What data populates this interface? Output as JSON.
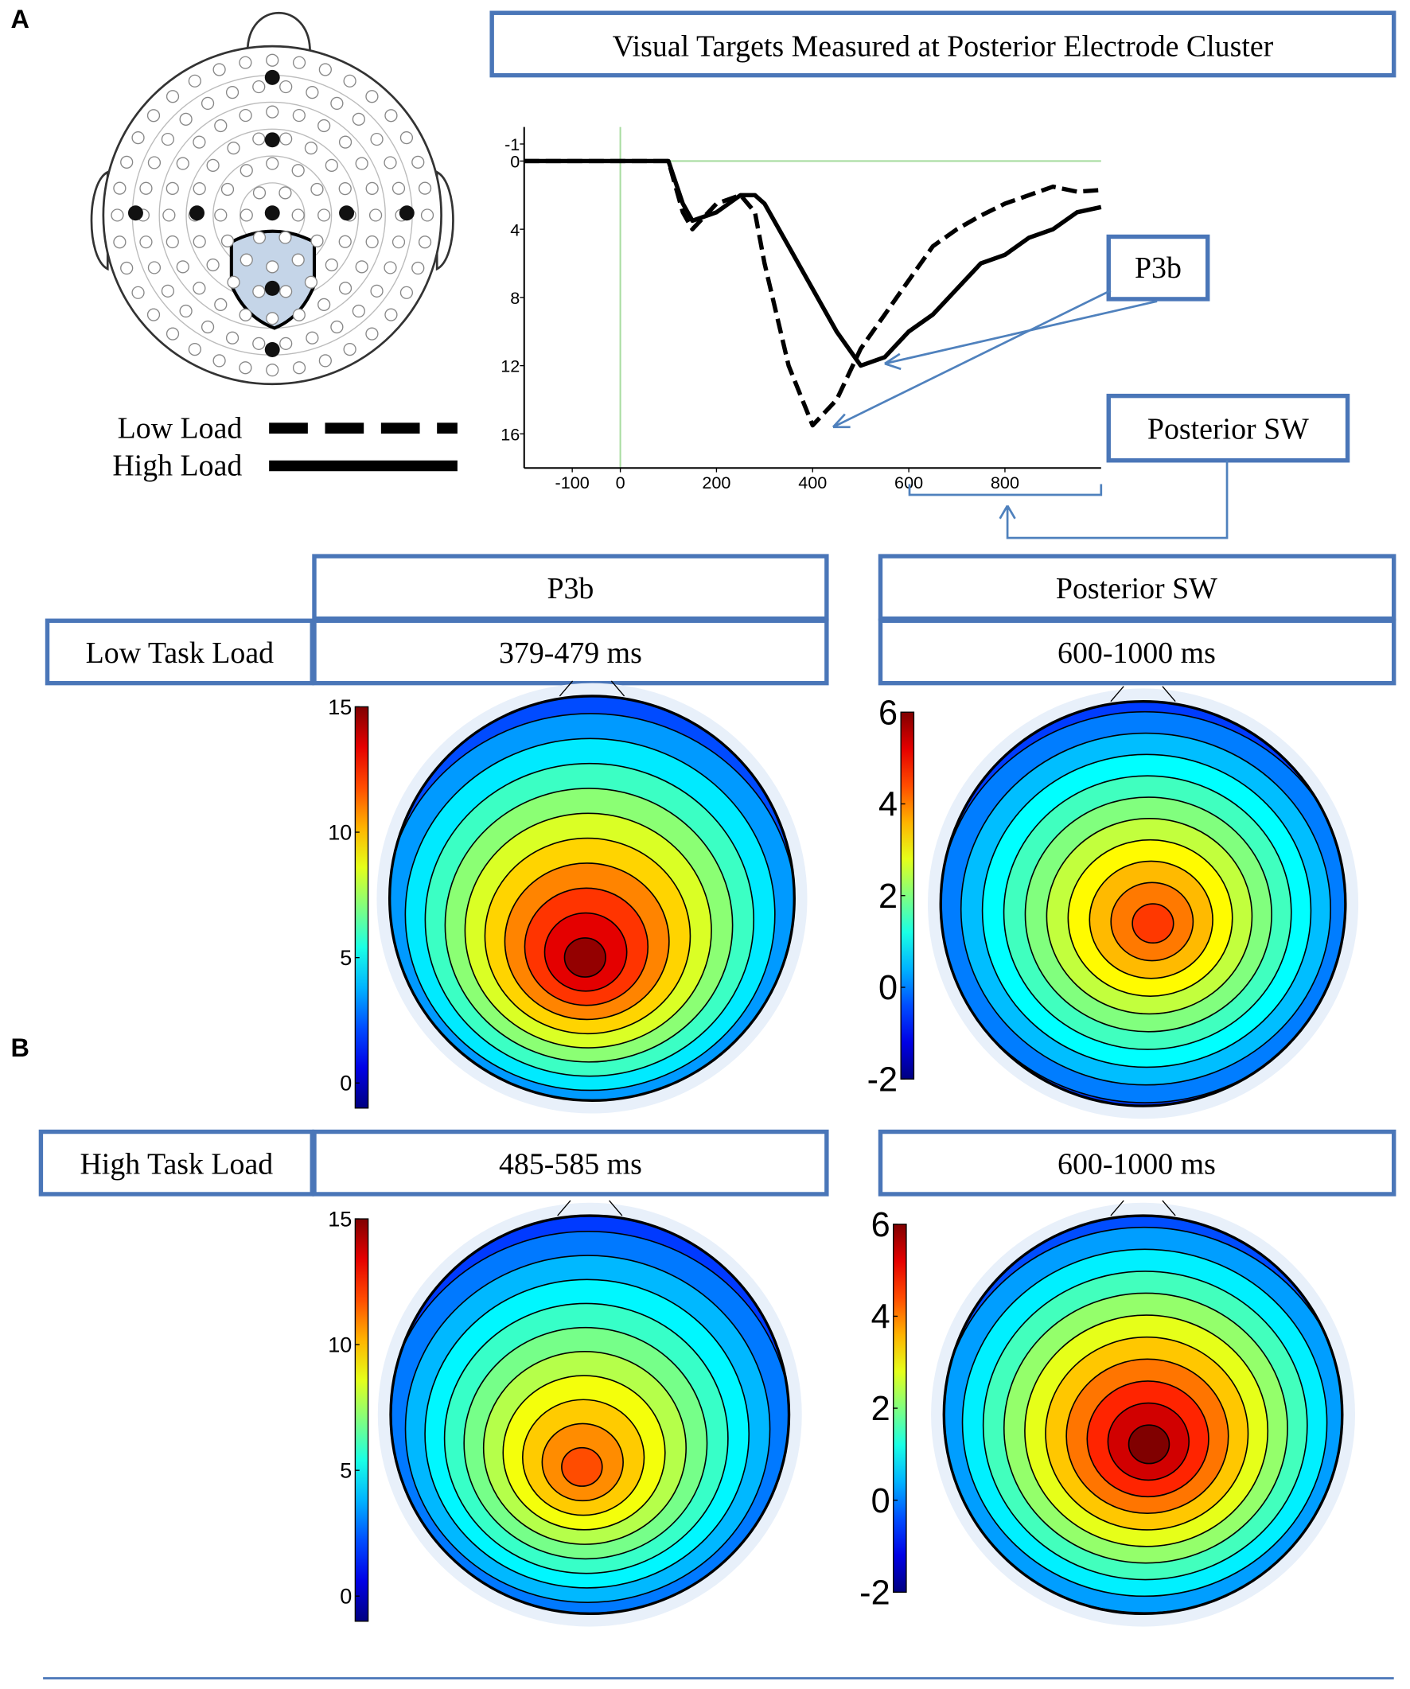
{
  "panel_labels": [
    "A",
    "B"
  ],
  "chart_data": {
    "type": "line",
    "title": "Visual Targets Measured at Posterior Electrode Cluster",
    "x": [
      -200,
      -150,
      -100,
      -50,
      0,
      50,
      100,
      130,
      150,
      200,
      250,
      280,
      300,
      350,
      400,
      450,
      500,
      550,
      600,
      650,
      700,
      750,
      800,
      850,
      900,
      950,
      1000
    ],
    "series": [
      {
        "name": "Low Load",
        "color": "#000000",
        "line_style": "dashed",
        "values": [
          0,
          0,
          0,
          0,
          0,
          0,
          0,
          3,
          4,
          2.5,
          2,
          3,
          6,
          12,
          15.5,
          14,
          11,
          9,
          7,
          5,
          4,
          3.2,
          2.5,
          2,
          1.5,
          1.8,
          1.7
        ]
      },
      {
        "name": "High Load",
        "color": "#000000",
        "line_style": "solid",
        "values": [
          0,
          0,
          0,
          0,
          0,
          0,
          0,
          2.5,
          3.5,
          3,
          2,
          2,
          2.5,
          5,
          7.5,
          10,
          12,
          11.5,
          10,
          9,
          7.5,
          6,
          5.5,
          4.5,
          4,
          3,
          2.7
        ]
      }
    ],
    "xlim": [
      -200,
      1000
    ],
    "xticks": [
      -100,
      0,
      200,
      400,
      600,
      800
    ],
    "ylim": [
      -2,
      18
    ],
    "y_reversed": true,
    "yticks": [
      -1,
      0,
      4,
      8,
      12,
      16
    ],
    "annotations": [
      "P3b",
      "Posterior SW"
    ]
  },
  "table": {
    "columns": [
      "P3b",
      "Posterior SW"
    ],
    "rows": [
      [
        "Low Task Load",
        "379-479 ms",
        "600-1000 ms"
      ],
      [
        "High Task Load",
        "485-585 ms",
        "600-1000 ms"
      ]
    ]
  },
  "topomaps": [
    {
      "clim": [
        -1,
        15
      ],
      "colorbar_ticks": [
        0,
        5,
        10,
        15
      ]
    },
    {
      "clim": [
        -2,
        6
      ],
      "colorbar_ticks": [
        -2,
        0,
        2,
        4,
        6
      ]
    },
    {
      "clim": [
        -1,
        15
      ],
      "colorbar_ticks": [
        0,
        5,
        10,
        15
      ]
    },
    {
      "clim": [
        -2,
        6
      ],
      "colorbar_ticks": [
        -2,
        0,
        2,
        4,
        6
      ]
    }
  ]
}
